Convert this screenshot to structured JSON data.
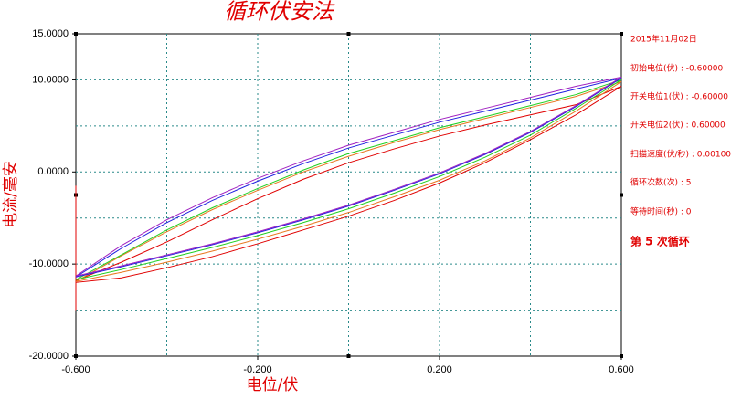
{
  "chart_data": {
    "type": "line",
    "title": "循环伏安法",
    "x_label": "电位/伏",
    "y_label": "电流/毫安",
    "xlim": [
      -0.6,
      0.6
    ],
    "ylim": [
      -20,
      15
    ],
    "xticks": [
      {
        "value": -0.6,
        "label": "-0.600"
      },
      {
        "value": -0.2,
        "label": "-0.200"
      },
      {
        "value": 0.2,
        "label": "0.200"
      },
      {
        "value": 0.6,
        "label": "0.600"
      }
    ],
    "yticks": [
      {
        "value": 15,
        "label": "15.0000"
      },
      {
        "value": 10,
        "label": "10.0000"
      },
      {
        "value": 0,
        "label": "0.0000"
      },
      {
        "value": -10,
        "label": "-10.0000"
      },
      {
        "value": -20,
        "label": "-20.0000"
      }
    ],
    "x_gridlines": [
      -0.4,
      -0.2,
      0,
      0.2,
      0.4
    ],
    "y_gridlines": [
      10,
      5,
      0,
      -5,
      -10,
      -15
    ],
    "grid": true,
    "x": [
      -0.6,
      -0.5,
      -0.4,
      -0.3,
      -0.2,
      -0.1,
      0,
      0.1,
      0.2,
      0.3,
      0.4,
      0.5,
      0.6,
      0.5,
      0.4,
      0.3,
      0.2,
      0.1,
      0,
      -0.1,
      -0.2,
      -0.3,
      -0.4,
      -0.5,
      -0.6
    ],
    "series": [
      {
        "color": "#e00000",
        "x": [
          -0.6,
          -0.6,
          -0.6,
          -0.5,
          -0.4,
          -0.3,
          -0.2,
          -0.1,
          0,
          0.1,
          0.2,
          0.3,
          0.4,
          0.5,
          0.6,
          0.5,
          0.4,
          0.3,
          0.2,
          0.1,
          0,
          -0.1,
          -0.2,
          -0.3,
          -0.4,
          -0.5,
          -0.6
        ],
        "values": [
          -1.5,
          -15,
          -12,
          -11.5,
          -10.4,
          -9.2,
          -7.8,
          -6.3,
          -4.8,
          -3.1,
          -1.2,
          1.0,
          3.5,
          6.2,
          9.3,
          7.3,
          6.2,
          5.1,
          3.9,
          2.5,
          1.0,
          -0.8,
          -2.9,
          -5.2,
          -7.6,
          -9.8,
          -11.8
        ]
      },
      {
        "color": "#e87820",
        "values": [
          -11.9,
          -10.9,
          -9.8,
          -8.6,
          -7.3,
          -5.9,
          -4.4,
          -2.7,
          -0.9,
          1.2,
          3.7,
          6.6,
          9.8,
          8.2,
          7.0,
          5.8,
          4.6,
          3.2,
          1.7,
          0,
          -2.0,
          -4.1,
          -6.5,
          -9.1,
          -11.9
        ]
      },
      {
        "color": "#20d020",
        "values": [
          -11.7,
          -10.6,
          -9.4,
          -8.2,
          -6.9,
          -5.5,
          -4.0,
          -2.3,
          -0.5,
          1.6,
          4.0,
          6.9,
          10.0,
          8.4,
          7.2,
          6.0,
          4.8,
          3.4,
          2.0,
          0.2,
          -1.8,
          -3.9,
          -6.3,
          -9.0,
          -11.7
        ]
      },
      {
        "color": "#2020e0",
        "values": [
          -11.4,
          -10.3,
          -9.1,
          -7.9,
          -6.6,
          -5.2,
          -3.7,
          -2.0,
          -0.2,
          1.9,
          4.3,
          7.1,
          10.2,
          9.0,
          7.8,
          6.6,
          5.4,
          4.0,
          2.6,
          0.9,
          -1.0,
          -3.1,
          -5.5,
          -8.3,
          -11.4
        ]
      },
      {
        "color": "#a020c0",
        "values": [
          -11.3,
          -10.2,
          -9.0,
          -7.8,
          -6.5,
          -5.1,
          -3.6,
          -1.9,
          -0.1,
          2.0,
          4.4,
          7.2,
          10.3,
          9.3,
          8.1,
          6.9,
          5.7,
          4.3,
          2.9,
          1.2,
          -0.7,
          -2.8,
          -5.2,
          -8.0,
          -11.3
        ]
      }
    ],
    "info": [
      "2015年11月02日",
      "初始电位(伏) : -0.60000",
      "开关电位1(伏) : -0.60000",
      "开关电位2(伏) : 0.60000",
      "扫描速度(伏/秒) : 0.00100",
      "循环次数(次) : 5",
      "等待时间(秒) : 0",
      "第 5 次循环"
    ]
  }
}
